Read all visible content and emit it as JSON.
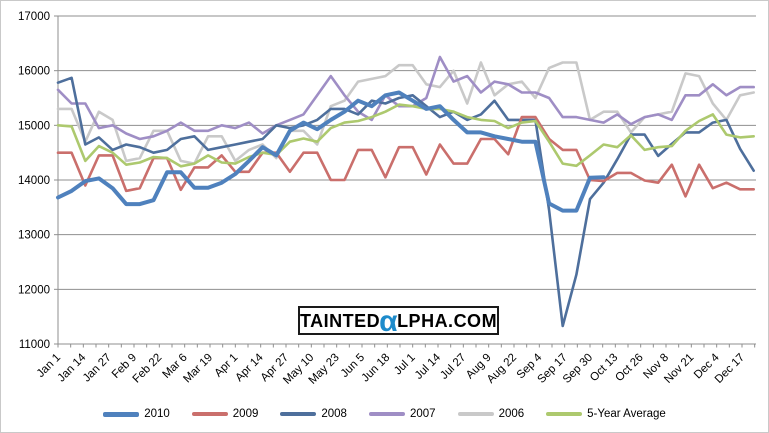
{
  "watermark": {
    "pre": "Tainted",
    "alpha": "α",
    "post": "lpha.com",
    "alpha_color": "#1d8bcb"
  },
  "chart_data": {
    "type": "line",
    "title": "",
    "xlabel": "",
    "ylabel": "",
    "ylim": [
      11000,
      17000
    ],
    "ytick_step": 1000,
    "y_tick_labels": [
      "11000",
      "12000",
      "13000",
      "14000",
      "15000",
      "16000",
      "17000"
    ],
    "grid": "horizontal",
    "legend_position": "bottom",
    "x_labels": [
      "Jan 1",
      "Jan 14",
      "Jan 27",
      "Feb 9",
      "Feb 22",
      "Mar 6",
      "Mar 19",
      "Apr 1",
      "Apr 14",
      "Apr 27",
      "May 10",
      "May 23",
      "Jun 5",
      "Jun 18",
      "Jul 1",
      "Jul 14",
      "Jul 27",
      "Aug 9",
      "Aug 22",
      "Sep 4",
      "Sep 17",
      "Sep 30",
      "Oct 13",
      "Oct 26",
      "Nov 8",
      "Nov 21",
      "Dec 4",
      "Dec 17"
    ],
    "x_label_interval_days": 13,
    "x_unit": "week",
    "series": [
      {
        "name": "2010",
        "color": "#4f81bd",
        "width": 4,
        "values": [
          13680,
          13800,
          13980,
          14030,
          13850,
          13560,
          13560,
          13630,
          14140,
          14140,
          13860,
          13860,
          13950,
          14110,
          14350,
          14600,
          14450,
          14900,
          15050,
          14930,
          15100,
          15250,
          15450,
          15350,
          15550,
          15600,
          15450,
          15300,
          15350,
          15100,
          14870,
          14870,
          14800,
          14750,
          14700,
          14700,
          13570,
          13440,
          13440,
          14040,
          14050
        ]
      },
      {
        "name": "2009",
        "color": "#ca6f6c",
        "width": 2.6,
        "values": [
          14500,
          14500,
          13900,
          14450,
          14450,
          13800,
          13850,
          14400,
          14400,
          13820,
          14230,
          14230,
          14450,
          14150,
          14150,
          14500,
          14500,
          14150,
          14500,
          14500,
          14000,
          14000,
          14550,
          14550,
          14050,
          14600,
          14600,
          14100,
          14650,
          14300,
          14300,
          14750,
          14750,
          14470,
          15150,
          15150,
          14750,
          14550,
          14550,
          14000,
          13980,
          14130,
          14130,
          13990,
          13950,
          14280,
          13700,
          14280,
          13850,
          13950,
          13830,
          13830
        ]
      },
      {
        "name": "2008",
        "color": "#4e6f9c",
        "width": 2.6,
        "values": [
          15780,
          15870,
          14650,
          14780,
          14550,
          14650,
          14600,
          14500,
          14550,
          14750,
          14800,
          14550,
          14600,
          14650,
          14700,
          14750,
          15000,
          14950,
          15000,
          15100,
          15300,
          15300,
          15200,
          15450,
          15400,
          15500,
          15550,
          15350,
          15150,
          15250,
          15100,
          15200,
          15450,
          15100,
          15100,
          15100,
          13450,
          11330,
          12270,
          13650,
          13950,
          14380,
          14830,
          14830,
          14440,
          14660,
          14870,
          14870,
          15050,
          15100,
          14570,
          14170
        ]
      },
      {
        "name": "2007",
        "color": "#9f8ec5",
        "width": 2.6,
        "values": [
          15650,
          15400,
          15400,
          14950,
          15000,
          14850,
          14750,
          14800,
          14900,
          15050,
          14900,
          14900,
          15000,
          14950,
          15050,
          14850,
          15000,
          15100,
          15200,
          15550,
          15900,
          15550,
          15250,
          15100,
          15550,
          15350,
          15350,
          15500,
          16250,
          15800,
          15900,
          15600,
          15800,
          15750,
          15600,
          15600,
          15500,
          15150,
          15150,
          15100,
          15050,
          15200,
          15020,
          15150,
          15200,
          15100,
          15550,
          15550,
          15750,
          15550,
          15700,
          15700
        ]
      },
      {
        "name": "2006",
        "color": "#c9c9c9",
        "width": 2.6,
        "values": [
          15300,
          15300,
          14700,
          15250,
          15100,
          14350,
          14400,
          14900,
          14900,
          14350,
          14300,
          14800,
          14800,
          14350,
          14550,
          14650,
          14400,
          14900,
          14900,
          14650,
          15350,
          15450,
          15800,
          15850,
          15900,
          16100,
          16100,
          15750,
          15700,
          16000,
          15400,
          16150,
          15550,
          15750,
          15800,
          15500,
          16050,
          16150,
          16150,
          15100,
          15250,
          15250,
          14870,
          15150,
          15200,
          15250,
          15950,
          15900,
          15400,
          15100,
          15550,
          15600
        ]
      },
      {
        "name": "5-Year Average",
        "color": "#adc96e",
        "width": 2.6,
        "values": [
          15000,
          14980,
          14350,
          14620,
          14500,
          14280,
          14320,
          14420,
          14400,
          14250,
          14300,
          14450,
          14320,
          14300,
          14420,
          14500,
          14460,
          14700,
          14760,
          14700,
          14950,
          15050,
          15080,
          15150,
          15250,
          15380,
          15350,
          15300,
          15300,
          15250,
          15150,
          15100,
          15080,
          14950,
          15050,
          15080,
          14700,
          14300,
          14260,
          14450,
          14650,
          14600,
          14820,
          14550,
          14600,
          14620,
          14900,
          15080,
          15200,
          14830,
          14780,
          14800
        ]
      }
    ],
    "draw_order": [
      4,
      3,
      2,
      1,
      5,
      0
    ],
    "colors": {
      "gridline": "#8f8f8f",
      "axis": "#8f8f8f",
      "tick_text": "#000000"
    }
  }
}
